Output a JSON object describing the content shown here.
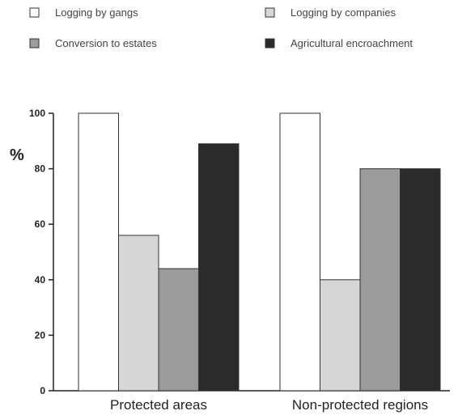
{
  "chart_data": {
    "type": "bar",
    "ylabel": "%",
    "ylim": [
      0,
      100
    ],
    "yticks": [
      0,
      20,
      40,
      60,
      80,
      100
    ],
    "grid": false,
    "legend_placement": "top",
    "categories": [
      "Protected areas",
      "Non-protected regions"
    ],
    "series": [
      {
        "name": "Logging by gangs",
        "values": [
          100,
          100
        ],
        "color": "#ffffff"
      },
      {
        "name": "Logging by companies",
        "values": [
          56,
          40
        ],
        "color": "#d6d6d6"
      },
      {
        "name": "Conversion to estates",
        "values": [
          44,
          80
        ],
        "color": "#9b9b9b"
      },
      {
        "name": "Agricultural encroachment",
        "values": [
          89,
          80
        ],
        "color": "#2b2b2b"
      }
    ]
  }
}
